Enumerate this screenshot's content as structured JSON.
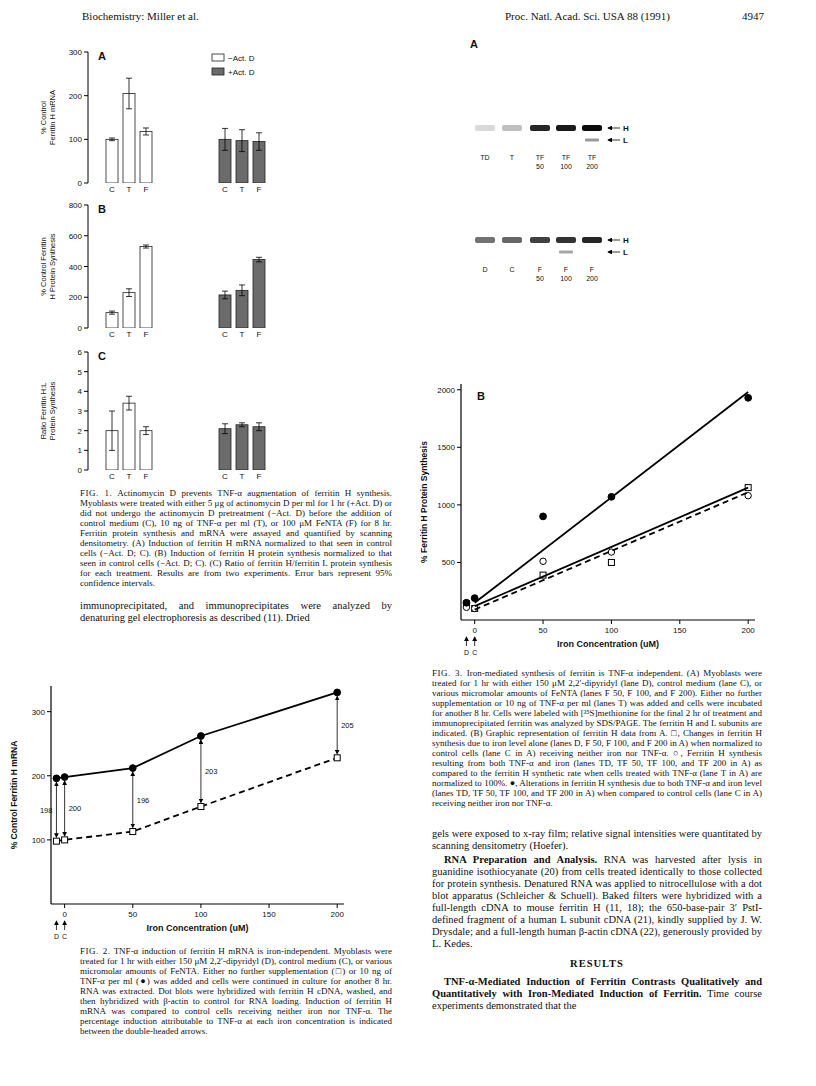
{
  "header": {
    "running_head": "Biochemistry: Miller et al.",
    "journal": "Proc. Natl. Acad. Sci. USA 88 (1991)",
    "page": "4947"
  },
  "chart_data": [
    {
      "type": "bar",
      "title": "A",
      "y_label": "% Control Ferritin H mRNA",
      "categories": [
        "C",
        "T",
        "F",
        "C",
        "T",
        "F"
      ],
      "ylim": [
        0,
        300
      ],
      "yticks": [
        0,
        100,
        200,
        300
      ],
      "legend": "top-right",
      "series": [
        {
          "name": "−Act. D",
          "color": "#ffffff",
          "values": [
            100,
            205,
            118,
            null,
            null,
            null
          ],
          "errors": [
            3,
            35,
            8,
            null,
            null,
            null
          ]
        },
        {
          "name": "+Act. D",
          "color": "#6b6b6b",
          "values": [
            null,
            null,
            null,
            100,
            97,
            95
          ],
          "errors": [
            null,
            null,
            null,
            25,
            25,
            20
          ]
        }
      ]
    },
    {
      "type": "bar",
      "title": "B",
      "y_label": "% Control Ferritin H Protein Synthesis",
      "categories": [
        "C",
        "T",
        "F",
        "C",
        "T",
        "F"
      ],
      "ylim": [
        0,
        800
      ],
      "yticks": [
        0,
        200,
        400,
        600,
        800
      ],
      "series": [
        {
          "color": "#ffffff",
          "values": [
            100,
            230,
            530,
            null,
            null,
            null
          ],
          "errors": [
            10,
            25,
            10,
            null,
            null,
            null
          ]
        },
        {
          "color": "#6b6b6b",
          "values": [
            null,
            null,
            null,
            215,
            245,
            445
          ],
          "errors": [
            null,
            null,
            null,
            25,
            35,
            15
          ]
        }
      ]
    },
    {
      "type": "bar",
      "title": "C",
      "y_label": "Ratio Ferritin H:L Protein Synthesis",
      "categories": [
        "C",
        "T",
        "F",
        "C",
        "T",
        "F"
      ],
      "ylim": [
        0,
        6
      ],
      "yticks": [
        0,
        1,
        2,
        3,
        4,
        5,
        6
      ],
      "series": [
        {
          "color": "#ffffff",
          "values": [
            2.0,
            3.4,
            2.0,
            null,
            null,
            null
          ],
          "errors": [
            1.0,
            0.35,
            0.2,
            null,
            null,
            null
          ]
        },
        {
          "color": "#6b6b6b",
          "values": [
            null,
            null,
            null,
            2.1,
            2.3,
            2.2
          ],
          "errors": [
            null,
            null,
            null,
            0.25,
            0.1,
            0.2
          ]
        }
      ]
    },
    {
      "type": "line",
      "y_label": "% Control Ferritin H mRNA",
      "x_label": "Iron Concentration (uM)",
      "x": [
        -6,
        0,
        50,
        100,
        200
      ],
      "xlim": [
        -10,
        205
      ],
      "xticks": [
        0,
        50,
        100,
        150,
        200
      ],
      "ylim": [
        0,
        340
      ],
      "yticks": [
        100,
        200,
        300
      ],
      "x_markers": [
        {
          "value": -6,
          "label": "D"
        },
        {
          "value": 0,
          "label": "C"
        }
      ],
      "series": [
        {
          "color": "#000000",
          "marker": "open-square",
          "line_style": "dashed",
          "values": [
            98,
            100,
            113,
            152,
            228
          ]
        },
        {
          "color": "#000000",
          "marker": "filled-circle",
          "line_style": "solid",
          "values": [
            196,
            198,
            212,
            262,
            330
          ]
        }
      ],
      "annotations": [
        {
          "x": -6,
          "text": "198"
        },
        {
          "x": 0,
          "text": "200"
        },
        {
          "x": 50,
          "text": "196"
        },
        {
          "x": 100,
          "text": "203"
        },
        {
          "x": 200,
          "text": "205"
        }
      ]
    },
    {
      "type": "scatter",
      "title": "B",
      "y_label": "% Ferritin H Protein Synthesis",
      "x_label": "Iron Concentration (uM)",
      "xlim": [
        -10,
        205
      ],
      "xticks": [
        0,
        50,
        100,
        150,
        200
      ],
      "ylim": [
        0,
        2050
      ],
      "yticks": [
        500,
        1000,
        1500,
        2000
      ],
      "x_markers": [
        {
          "value": -6,
          "label": "D"
        },
        {
          "value": 0,
          "label": "C"
        }
      ],
      "series": [
        {
          "type": "scatter",
          "color": "#000000",
          "marker": "open-square",
          "x": [
            -6,
            0,
            50,
            100,
            200
          ],
          "values": [
            140,
            100,
            390,
            500,
            1150
          ]
        },
        {
          "type": "scatter",
          "color": "#000000",
          "marker": "open-circle",
          "x": [
            -6,
            0,
            50,
            100,
            200
          ],
          "values": [
            110,
            100,
            510,
            590,
            1080
          ]
        },
        {
          "type": "scatter",
          "color": "#000000",
          "marker": "filled-circle",
          "x": [
            -6,
            0,
            50,
            100,
            200
          ],
          "values": [
            150,
            190,
            900,
            1070,
            1930
          ]
        },
        {
          "type": "line",
          "color": "#000000",
          "line_style": "solid",
          "x": [
            0,
            200
          ],
          "values": [
            120,
            1150
          ]
        },
        {
          "type": "line",
          "color": "#000000",
          "line_style": "dashed",
          "x": [
            0,
            200
          ],
          "values": [
            90,
            1110
          ]
        },
        {
          "type": "line",
          "color": "#000000",
          "line_style": "solid",
          "x": [
            0,
            200
          ],
          "values": [
            150,
            1980
          ]
        }
      ]
    }
  ],
  "gel": {
    "title": "A",
    "band_labels": [
      "H",
      "L"
    ],
    "rows": [
      {
        "lanes": [
          "TD",
          "T",
          "TF 50",
          "TF 100",
          "TF 200"
        ],
        "H": [
          0.15,
          0.25,
          0.85,
          0.9,
          0.95
        ],
        "L": [
          0,
          0,
          0,
          0,
          0.4
        ]
      },
      {
        "lanes": [
          "D",
          "C",
          "F 50",
          "F 100",
          "F 200"
        ],
        "H": [
          0.55,
          0.6,
          0.75,
          0.8,
          0.85
        ],
        "L": [
          0,
          0,
          0,
          0.35,
          0
        ]
      }
    ]
  },
  "captions": [
    {
      "label": "FIG. 1.",
      "text": "Actinomycin D prevents TNF-α augmentation of ferritin H synthesis. Myoblasts were treated with either 5 μg of actinomycin D per ml for 1 hr (+Act. D) or did not undergo the actinomycin D pretreatment (−Act. D) before the addition of control medium (C), 10 ng of TNF-α per ml (T), or 100 μM FeNTA (F) for 8 hr. Ferritin protein synthesis and mRNA were assayed and quantified by scanning densitometry. (A) Induction of ferritin H mRNA normalized to that seen in control cells (−Act. D; C). (B) Induction of ferritin H protein synthesis normalized to that seen in control cells (−Act. D; C). (C) Ratio of ferritin H/ferritin L protein synthesis for each treatment. Results are from two experiments. Error bars represent 95% confidence intervals."
    },
    {
      "label": "FIG. 2.",
      "text": "TNF-α induction of ferritin H mRNA is iron-independent. Myoblasts were treated for 1 hr with either 150 μM 2,2′-dipyridyl (D), control medium (C), or various micromolar amounts of FeNTA. Either no further supplementation (□) or 10 ng of TNF-α per ml (●) was added and cells were continued in culture for another 8 hr. RNA was extracted. Dot blots were hybridized with ferritin H cDNA, washed, and then hybridized with β-actin to control for RNA loading. Induction of ferritin H mRNA was compared to control cells receiving neither iron nor TNF-α. The percentage induction attributable to TNF-α at each iron concentration is indicated between the double-headed arrows."
    },
    {
      "label": "FIG. 3.",
      "text": "Iron-mediated synthesis of ferritin is TNF-α independent. (A) Myoblasts were treated for 1 hr with either 150 μM 2,2′-dipyridyl (lane D), control medium (lane C), or various micromolar amounts of FeNTA (lanes F 50, F 100, and F 200). Either no further supplementation or 10 ng of TNF-α per ml (lanes T) was added and cells were incubated for another 8 hr. Cells were labeled with [³⁵S]methionine for the final 2 hr of treatment and immunoprecipitated ferritin was analyzed by SDS/PAGE. The ferritin H and L subunits are indicated. (B) Graphic representation of ferritin H data from A. □, Changes in ferritin H synthesis due to iron level alone (lanes D, F 50, F 100, and F 200 in A) when normalized to control cells (lane C in A) receiving neither iron nor TNF-α. ○, Ferritin H synthesis resulting from both TNF-α and iron (lanes TD, TF 50, TF 100, and TF 200 in A) as compared to the ferritin H synthetic rate when cells treated with TNF-α (lane T in A) are normalized to 100%. ●, Alterations in ferritin H synthesis due to both TNF-α and iron level (lanes TD, TF 50, TF 100, and TF 200 in A) when compared to control cells (lane C in A) receiving neither iron nor TNF-α."
    }
  ],
  "body": {
    "left": "immunoprecipitated, and immunoprecipitates were analyzed by denaturing gel electrophoresis as described (11). Dried",
    "right": [
      {
        "text": "gels were exposed to x-ray film; relative signal intensities were quantitated by scanning densitometry (Hoefer)."
      },
      {
        "heading": "RNA Preparation and Analysis.",
        "text": "RNA was harvested after lysis in guanidine isothiocyanate (20) from cells treated identically to those collected for protein synthesis. Denatured RNA was applied to nitrocellulose with a dot blot apparatus (Schleicher & Schuell). Baked filters were hybridized with a full-length cDNA to mouse ferritin H (11, 18); the 650-base-pair 3′ PstI-defined fragment of a human L subunit cDNA (21), kindly supplied by J. W. Drysdale; and a full-length human β-actin cDNA (22), generously provided by L. Kedes."
      },
      {
        "section": "RESULTS"
      },
      {
        "heading": "TNF-α-Mediated Induction of Ferritin Contrasts Qualitatively and Quantitatively with Iron-Mediated Induction of Ferritin.",
        "text": "Time course experiments demonstrated that the"
      }
    ]
  }
}
